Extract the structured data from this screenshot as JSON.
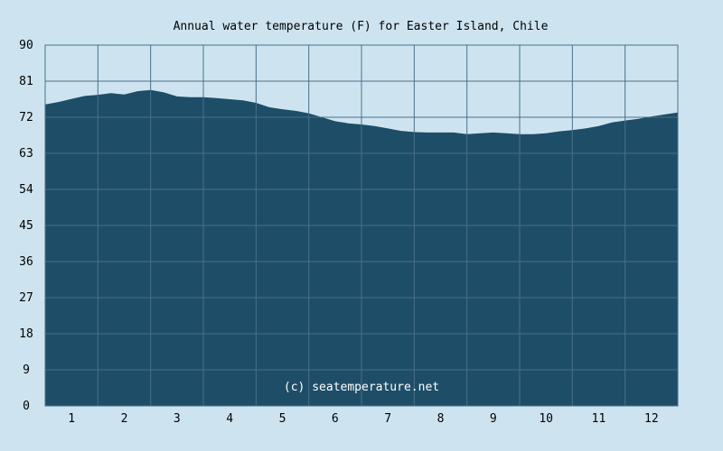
{
  "chart_data": {
    "type": "area",
    "title": "Annual water temperature (F) for Easter Island, Chile",
    "xlabel": "",
    "ylabel": "",
    "categories": [
      "1",
      "2",
      "3",
      "4",
      "5",
      "6",
      "7",
      "8",
      "9",
      "10",
      "11",
      "12"
    ],
    "yticks": [
      "0",
      "9",
      "18",
      "27",
      "36",
      "45",
      "54",
      "63",
      "72",
      "81",
      "90"
    ],
    "ylim": [
      0,
      90
    ],
    "xlim": [
      0.5,
      12.5
    ],
    "grid": true,
    "series": [
      {
        "x": [
          0.5,
          0.75,
          1.0,
          1.25,
          1.5,
          1.75,
          2.0,
          2.25,
          2.5,
          2.75,
          3.0,
          3.25,
          3.5,
          3.75,
          4.0,
          4.25,
          4.5,
          4.75,
          5.0,
          5.25,
          5.5,
          5.75,
          6.0,
          6.25,
          6.5,
          6.75,
          7.0,
          7.25,
          7.5,
          7.75,
          8.0,
          8.25,
          8.5,
          8.75,
          9.0,
          9.25,
          9.5,
          9.75,
          10.0,
          10.25,
          10.5,
          10.75,
          11.0,
          11.25,
          11.5,
          11.75,
          12.0,
          12.25,
          12.5
        ],
        "values": [
          75.2,
          75.8,
          76.6,
          77.3,
          77.6,
          78.0,
          77.7,
          78.5,
          78.8,
          78.2,
          77.2,
          77.0,
          77.0,
          76.8,
          76.5,
          76.2,
          75.6,
          74.5,
          74.0,
          73.6,
          73.0,
          72.0,
          71.0,
          70.5,
          70.2,
          69.8,
          69.2,
          68.6,
          68.3,
          68.2,
          68.2,
          68.2,
          67.8,
          68.0,
          68.2,
          68.0,
          67.8,
          67.8,
          68.0,
          68.5,
          68.8,
          69.2,
          69.8,
          70.7,
          71.2,
          71.6,
          72.2,
          72.7,
          73.2
        ]
      }
    ],
    "colors": {
      "background": "#cde4f0",
      "area": "#1e4d68",
      "grid": "#4a6f88"
    },
    "annotation": "(c) seatemperature.net"
  }
}
